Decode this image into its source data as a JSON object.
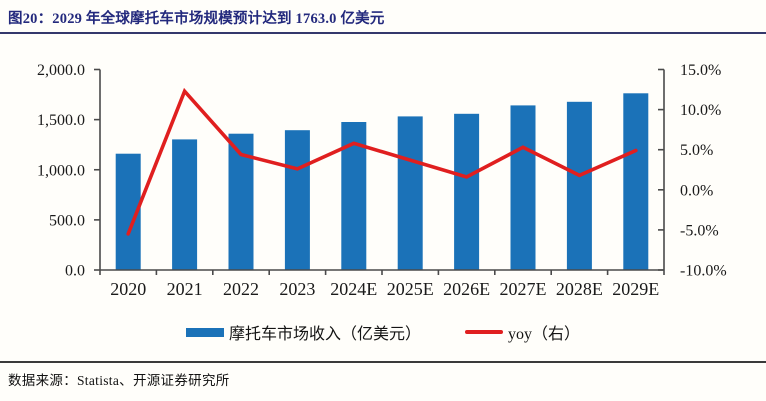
{
  "header": {
    "title": "图20：2029 年全球摩托车市场规模预计达到 1763.0 亿美元",
    "title_color": "#23297d"
  },
  "footer": {
    "source": "数据来源：Statista、开源证券研究所"
  },
  "chart_data": {
    "type": "bar",
    "subtype": "bar+line dual-axis combo",
    "categories": [
      "2020",
      "2021",
      "2022",
      "2023",
      "2024E",
      "2025E",
      "2026E",
      "2027E",
      "2028E",
      "2029E"
    ],
    "series": [
      {
        "name": "摩托车市场收入（亿美元）",
        "type": "bar",
        "axis": "left",
        "color": "#1b72b8",
        "values": [
          1160,
          1303,
          1360,
          1395,
          1476,
          1532,
          1558,
          1642,
          1678,
          1763
        ]
      },
      {
        "name": "yoy（右）",
        "type": "line",
        "axis": "right",
        "color": "#e01f1f",
        "values": [
          -5.5,
          12.3,
          4.4,
          2.6,
          5.8,
          3.7,
          1.6,
          5.3,
          1.8,
          4.9
        ]
      }
    ],
    "left_axis": {
      "min": 0,
      "max": 2000,
      "tick_labels": [
        "0.0",
        "500.0",
        "1,000.0",
        "1,500.0",
        "2,000.0"
      ]
    },
    "right_axis": {
      "min": -10,
      "max": 15,
      "tick_labels": [
        "-10.0%",
        "-5.0%",
        "0.0%",
        "5.0%",
        "10.0%",
        "15.0%"
      ]
    },
    "axis_color": "#4a4a4a",
    "label_color": "#1a1a1a",
    "grid": false,
    "legend_position": "bottom"
  }
}
